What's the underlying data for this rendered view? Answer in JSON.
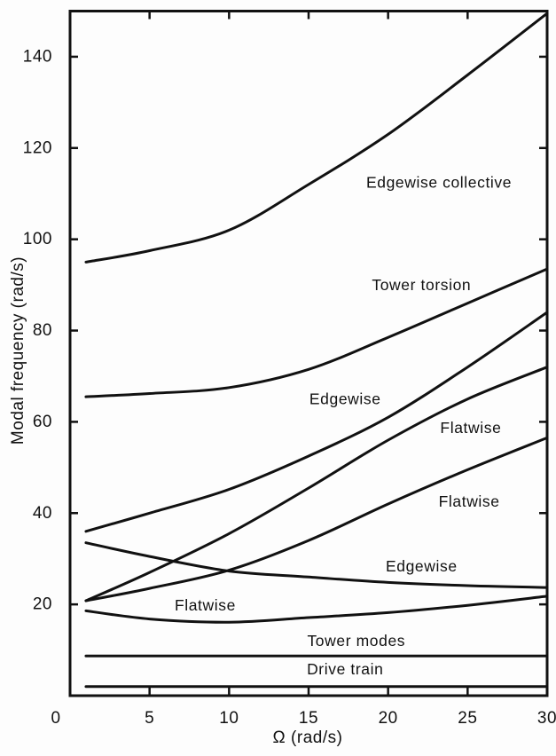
{
  "figure": {
    "background": "#fdfdfd",
    "ink_color": "#111111"
  },
  "chart_data": {
    "type": "line",
    "title": "",
    "xlabel": "Ω (rad/s)",
    "ylabel": "Modal frequency (rad/s)",
    "xlim": [
      0,
      30
    ],
    "ylim": [
      0,
      150
    ],
    "xticks": [
      0,
      5,
      10,
      15,
      20,
      25,
      30
    ],
    "yticks": [
      20,
      40,
      60,
      80,
      100,
      120,
      140
    ],
    "grid": false,
    "legend": "inline-labels",
    "x": [
      1,
      5,
      10,
      15,
      20,
      25,
      30
    ],
    "series": [
      {
        "name": "Edgewise collective",
        "values": [
          95,
          97.5,
          102,
          112,
          123,
          136,
          149.5
        ]
      },
      {
        "name": "Tower torsion",
        "values": [
          65.5,
          66.2,
          67.5,
          71.5,
          78.5,
          86,
          93.5
        ]
      },
      {
        "name": "Edgewise",
        "values": [
          36,
          40,
          45.2,
          52.5,
          61,
          72,
          84
        ]
      },
      {
        "name": "Flatwise",
        "values": [
          20.8,
          27,
          35.5,
          45.5,
          56,
          65,
          72
        ]
      },
      {
        "name": "Flatwise",
        "values": [
          20.8,
          23.5,
          27.5,
          34,
          42,
          49.5,
          56.5
        ]
      },
      {
        "name": "Edgewise",
        "values": [
          33.5,
          30.5,
          27.3,
          26,
          24.8,
          24.1,
          23.7
        ]
      },
      {
        "name": "Flatwise",
        "values": [
          18.6,
          16.8,
          16.1,
          17.1,
          18.2,
          19.8,
          21.8
        ]
      },
      {
        "name": "Tower modes",
        "values": [
          8.7,
          8.7,
          8.7,
          8.7,
          8.7,
          8.7,
          8.7
        ]
      },
      {
        "name": "Drive train",
        "values": [
          2,
          2,
          2,
          2,
          2,
          2,
          2
        ]
      }
    ],
    "labels": [
      {
        "text": "Edgewise collective",
        "x": 23.2,
        "y": 112.5
      },
      {
        "text": "Tower torsion",
        "x": 22.1,
        "y": 90
      },
      {
        "text": "Edgewise",
        "x": 17.3,
        "y": 65
      },
      {
        "text": "Flatwise",
        "x": 25.2,
        "y": 58.7
      },
      {
        "text": "Flatwise",
        "x": 25.1,
        "y": 42.6
      },
      {
        "text": "Edgewise",
        "x": 22.1,
        "y": 28.4
      },
      {
        "text": "Flatwise",
        "x": 8.5,
        "y": 19.8
      },
      {
        "text": "Tower modes",
        "x": 18.0,
        "y": 12.1
      },
      {
        "text": "Drive train",
        "x": 17.3,
        "y": 5.8
      }
    ]
  }
}
